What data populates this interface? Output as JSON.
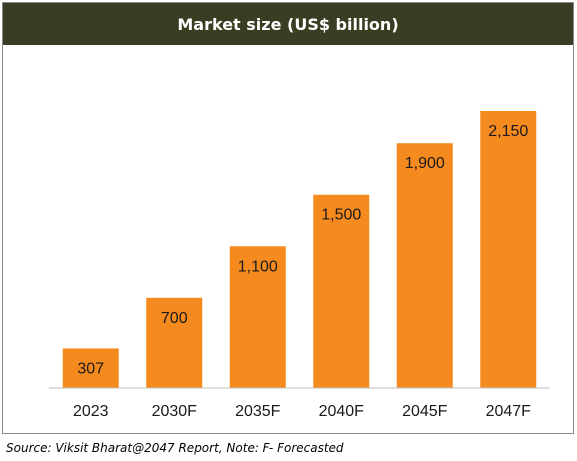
{
  "chart_data": {
    "type": "bar",
    "title": "Market size (US$ billion)",
    "categories": [
      "2023",
      "2030F",
      "2035F",
      "2040F",
      "2045F",
      "2047F"
    ],
    "values": [
      307,
      700,
      1100,
      1500,
      1900,
      2150
    ],
    "value_labels": [
      "307",
      "700",
      "1,100",
      "1,500",
      "1,900",
      "2,150"
    ],
    "xlabel": "",
    "ylabel": "",
    "ylim": [
      0,
      2150
    ],
    "grid": false,
    "legend": "none",
    "bar_color": "#f58a1f",
    "title_bar_color": "#3a3d21"
  },
  "source_note": "Source: Viksit Bharat@2047 Report, Note: F- Forecasted"
}
